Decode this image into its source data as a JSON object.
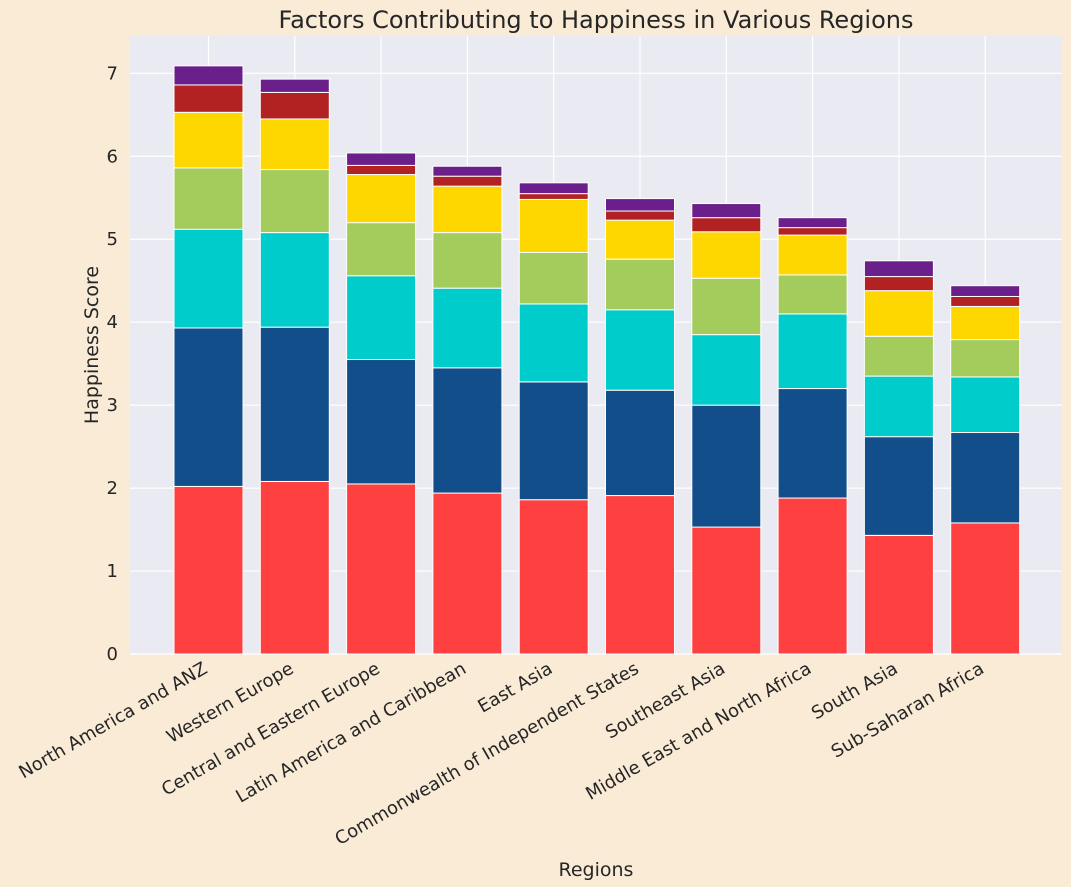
{
  "chart_data": {
    "type": "bar",
    "stacked": true,
    "title": "Factors Contributing to Happiness in Various Regions",
    "xlabel": "Regions",
    "ylabel": "Happiness Score",
    "ylim": [
      0,
      7.45
    ],
    "yticks": [
      0,
      1,
      2,
      3,
      4,
      5,
      6,
      7
    ],
    "grid": true,
    "legend": "none",
    "categories": [
      "North America and ANZ",
      "Western Europe",
      "Central and Eastern Europe",
      "Latin America and Caribbean",
      "East Asia",
      "Commonwealth of Independent States",
      "Southeast Asia",
      "Middle East and North Africa",
      "South Asia",
      "Sub-Saharan Africa"
    ],
    "series": [
      {
        "color": "#ff4040",
        "values": [
          2.02,
          2.08,
          2.05,
          1.94,
          1.86,
          1.91,
          1.53,
          1.88,
          1.43,
          1.58
        ]
      },
      {
        "color": "#114e8a",
        "values": [
          1.91,
          1.86,
          1.5,
          1.51,
          1.42,
          1.27,
          1.47,
          1.32,
          1.19,
          1.09
        ]
      },
      {
        "color": "#00cccc",
        "values": [
          1.19,
          1.14,
          1.01,
          0.96,
          0.94,
          0.97,
          0.85,
          0.9,
          0.73,
          0.67
        ]
      },
      {
        "color": "#a3cc5c",
        "values": [
          0.74,
          0.76,
          0.64,
          0.67,
          0.62,
          0.61,
          0.68,
          0.47,
          0.48,
          0.45
        ]
      },
      {
        "color": "#ffd700",
        "values": [
          0.67,
          0.61,
          0.58,
          0.56,
          0.64,
          0.47,
          0.56,
          0.48,
          0.55,
          0.4
        ]
      },
      {
        "color": "#b22222",
        "values": [
          0.33,
          0.32,
          0.11,
          0.12,
          0.07,
          0.11,
          0.17,
          0.09,
          0.17,
          0.12
        ]
      },
      {
        "color": "#6a1f8a",
        "values": [
          0.23,
          0.16,
          0.15,
          0.12,
          0.13,
          0.15,
          0.17,
          0.12,
          0.19,
          0.13
        ]
      }
    ]
  }
}
